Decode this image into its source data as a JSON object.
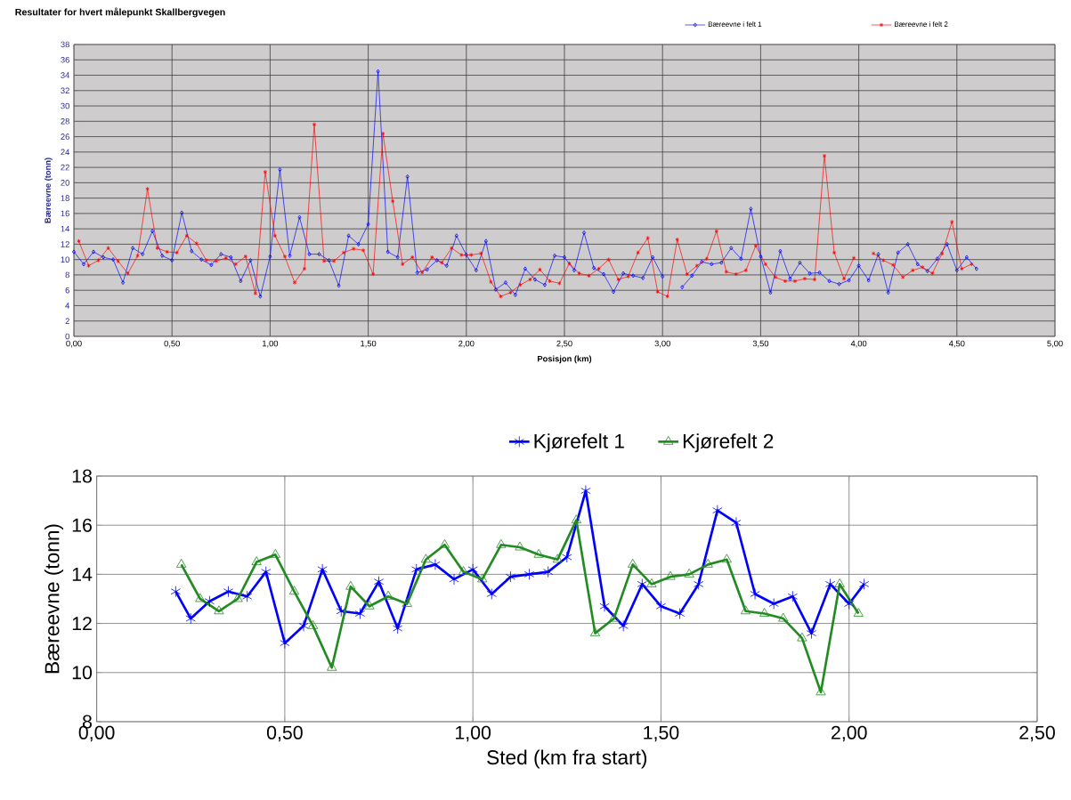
{
  "chart_data": [
    {
      "type": "line",
      "title": "Resultater for hvert målepunkt Skallbergvegen",
      "xlabel": "Posisjon (km)",
      "ylabel": "Bæreevne (tonn)",
      "series": [
        {
          "name": "Bæreevne i felt 1",
          "color": "#0000ff",
          "marker": "diamond",
          "x": [
            0.0,
            0.05,
            0.1,
            0.15,
            0.2,
            0.25,
            0.3,
            0.35,
            0.4,
            0.45,
            0.5,
            0.55,
            0.6,
            0.65,
            0.7,
            0.75,
            0.8,
            0.85,
            0.9,
            0.95,
            1.0,
            1.05,
            1.1,
            1.15,
            1.2,
            1.25,
            1.3,
            1.35,
            1.4,
            1.45,
            1.5,
            1.55,
            1.6,
            1.65,
            1.7,
            1.75,
            1.8,
            1.85,
            1.9,
            1.95,
            2.0,
            2.05,
            2.1,
            2.15,
            2.2,
            2.25,
            2.3,
            2.35,
            2.4,
            2.45,
            2.5,
            2.55,
            2.6,
            2.65,
            2.7,
            2.75,
            2.8,
            2.85,
            2.9,
            2.95,
            3.0,
            3.05,
            3.1,
            3.15,
            3.2,
            3.25,
            3.3,
            3.35,
            3.4,
            3.45,
            3.5,
            3.55,
            3.6,
            3.65,
            3.7,
            3.75,
            3.8,
            3.85,
            3.9,
            3.95,
            4.0,
            4.05,
            4.1,
            4.15,
            4.2,
            4.25,
            4.3,
            4.35,
            4.4,
            4.45,
            4.5,
            4.55,
            4.6
          ],
          "values": [
            11.0,
            9.4,
            11.0,
            10.3,
            10.0,
            7.0,
            11.5,
            10.7,
            13.7,
            10.5,
            9.9,
            16.1,
            11.1,
            10.0,
            9.3,
            10.7,
            10.3,
            7.2,
            9.9,
            5.2,
            10.4,
            21.7,
            10.5,
            15.5,
            10.7,
            10.7,
            9.9,
            6.6,
            13.1,
            12.0,
            14.6,
            34.5,
            11.0,
            10.3,
            20.8,
            8.3,
            8.7,
            9.9,
            9.2,
            13.1,
            10.6,
            8.6,
            12.4,
            6.1,
            7.0,
            5.4,
            8.8,
            7.4,
            6.7,
            10.5,
            10.3,
            8.6,
            13.5,
            8.9,
            8.1,
            5.8,
            8.2,
            7.9,
            7.6,
            10.3,
            7.8,
            null,
            6.4,
            7.9,
            9.7,
            9.4,
            9.6,
            11.5,
            10.1,
            16.6,
            10.4,
            5.7,
            11.1,
            7.5,
            9.6,
            8.2,
            8.3,
            7.2,
            6.8,
            7.3,
            9.2,
            7.3,
            10.7,
            5.7,
            10.9,
            12.0,
            9.4,
            8.5,
            10.1,
            12.0,
            8.6,
            10.3,
            8.8
          ]
        },
        {
          "name": "Bæreevne i felt 2",
          "color": "#ff0000",
          "marker": "cross",
          "x": [
            0.025,
            0.075,
            0.125,
            0.175,
            0.225,
            0.275,
            0.325,
            0.375,
            0.425,
            0.475,
            0.525,
            0.575,
            0.625,
            0.675,
            0.725,
            0.775,
            0.825,
            0.875,
            0.925,
            0.975,
            1.025,
            1.075,
            1.125,
            1.175,
            1.225,
            1.275,
            1.325,
            1.375,
            1.425,
            1.475,
            1.525,
            1.575,
            1.625,
            1.675,
            1.725,
            1.775,
            1.825,
            1.875,
            1.925,
            1.975,
            2.025,
            2.075,
            2.125,
            2.175,
            2.225,
            2.275,
            2.325,
            2.375,
            2.425,
            2.475,
            2.525,
            2.575,
            2.625,
            2.675,
            2.725,
            2.775,
            2.825,
            2.875,
            2.925,
            2.975,
            3.025,
            3.075,
            3.125,
            3.175,
            3.225,
            3.275,
            3.325,
            3.375,
            3.425,
            3.475,
            3.525,
            3.575,
            3.625,
            3.675,
            3.725,
            3.775,
            3.825,
            3.875,
            3.925,
            3.975,
            4.025,
            4.075,
            4.125,
            4.175,
            4.225,
            4.275,
            4.325,
            4.375,
            4.425,
            4.475,
            4.525,
            4.575
          ],
          "values": [
            12.4,
            9.2,
            9.9,
            11.5,
            9.8,
            8.2,
            10.5,
            19.2,
            11.5,
            11.0,
            10.9,
            13.1,
            12.1,
            9.9,
            9.8,
            10.2,
            9.4,
            10.4,
            5.6,
            21.4,
            13.1,
            10.4,
            7.0,
            8.8,
            27.6,
            9.8,
            9.8,
            10.9,
            11.4,
            11.2,
            8.1,
            26.4,
            17.6,
            9.4,
            10.3,
            8.3,
            10.3,
            9.6,
            11.5,
            10.6,
            10.6,
            10.8,
            7.1,
            5.2,
            5.7,
            6.7,
            7.4,
            8.7,
            7.2,
            6.9,
            9.5,
            8.2,
            7.9,
            8.8,
            10.0,
            7.4,
            7.8,
            10.9,
            12.8,
            5.8,
            5.2,
            12.6,
            8.1,
            9.2,
            10.1,
            13.7,
            8.4,
            8.1,
            8.6,
            11.8,
            9.4,
            7.7,
            7.2,
            7.2,
            7.5,
            7.4,
            23.5,
            10.9,
            7.5,
            10.2,
            null,
            10.8,
            9.9,
            9.3,
            7.7,
            8.6,
            9.0,
            8.2,
            10.8,
            14.9,
            8.8,
            9.4
          ]
        }
      ],
      "xlim": [
        0,
        5
      ],
      "ylim": [
        0,
        38
      ],
      "xticks": [
        {
          "value": 0,
          "label": "0,00"
        },
        {
          "value": 0.5,
          "label": "0,50"
        },
        {
          "value": 1,
          "label": "1,00"
        },
        {
          "value": 1.5,
          "label": "1,50"
        },
        {
          "value": 2,
          "label": "2,00"
        },
        {
          "value": 2.5,
          "label": "2,50"
        },
        {
          "value": 3,
          "label": "3,00"
        },
        {
          "value": 3.5,
          "label": "3,50"
        },
        {
          "value": 4,
          "label": "4,00"
        },
        {
          "value": 4.5,
          "label": "4,50"
        },
        {
          "value": 5,
          "label": "5,00"
        }
      ],
      "yticks": [
        0,
        2,
        4,
        6,
        8,
        10,
        12,
        14,
        16,
        18,
        20,
        22,
        24,
        26,
        28,
        30,
        32,
        34,
        36,
        38
      ],
      "grid": true,
      "legend": "top right"
    },
    {
      "type": "line",
      "xlabel": "Sted (km fra start)",
      "ylabel": "Bæreevne (tonn)",
      "series": [
        {
          "name": "Kjørefelt 1",
          "color": "#0000ff",
          "marker": "cross",
          "x": [
            0.21,
            0.25,
            0.3,
            0.35,
            0.4,
            0.45,
            0.5,
            0.55,
            0.6,
            0.65,
            0.7,
            0.75,
            0.8,
            0.85,
            0.9,
            0.95,
            1.0,
            1.05,
            1.1,
            1.15,
            1.2,
            1.25,
            1.3,
            1.35,
            1.4,
            1.45,
            1.5,
            1.55,
            1.6,
            1.65,
            1.7,
            1.75,
            1.8,
            1.85,
            1.9,
            1.95,
            2.0,
            2.04
          ],
          "values": [
            13.3,
            12.2,
            12.9,
            13.3,
            13.1,
            14.1,
            11.2,
            11.9,
            14.2,
            12.5,
            12.4,
            13.7,
            11.8,
            14.2,
            14.4,
            13.8,
            14.2,
            13.2,
            13.9,
            14.0,
            14.1,
            14.7,
            17.4,
            12.7,
            11.9,
            13.6,
            12.7,
            12.4,
            13.6,
            16.6,
            16.1,
            13.2,
            12.8,
            13.1,
            11.6,
            13.6,
            12.8,
            13.6
          ]
        },
        {
          "name": "Kjørefelt 2",
          "color": "#228b22",
          "marker": "triangle",
          "x": [
            0.225,
            0.275,
            0.325,
            0.375,
            0.425,
            0.475,
            0.525,
            0.575,
            0.625,
            0.675,
            0.725,
            0.775,
            0.825,
            0.875,
            0.925,
            0.975,
            1.025,
            1.075,
            1.125,
            1.175,
            1.225,
            1.275,
            1.325,
            1.375,
            1.425,
            1.475,
            1.525,
            1.575,
            1.625,
            1.675,
            1.725,
            1.775,
            1.825,
            1.875,
            1.925,
            1.975,
            2.025
          ],
          "values": [
            14.4,
            13.0,
            12.5,
            13.0,
            14.5,
            14.8,
            13.3,
            11.9,
            10.2,
            13.5,
            12.7,
            13.1,
            12.8,
            14.6,
            15.2,
            14.1,
            13.8,
            15.2,
            15.1,
            14.8,
            14.6,
            16.2,
            11.6,
            12.2,
            14.4,
            13.6,
            13.9,
            14.0,
            14.4,
            14.6,
            12.5,
            12.4,
            12.2,
            11.4,
            9.2,
            13.6,
            12.4
          ]
        }
      ],
      "xlim": [
        0,
        2.5
      ],
      "ylim": [
        8,
        18
      ],
      "xticks": [
        {
          "value": 0,
          "label": "0,00"
        },
        {
          "value": 0.5,
          "label": "0,50"
        },
        {
          "value": 1,
          "label": "1,00"
        },
        {
          "value": 1.5,
          "label": "1,50"
        },
        {
          "value": 2,
          "label": "2,00"
        },
        {
          "value": 2.5,
          "label": "2,50"
        }
      ],
      "yticks": [
        8,
        10,
        12,
        14,
        16,
        18
      ],
      "grid": true,
      "legend": "top"
    }
  ]
}
